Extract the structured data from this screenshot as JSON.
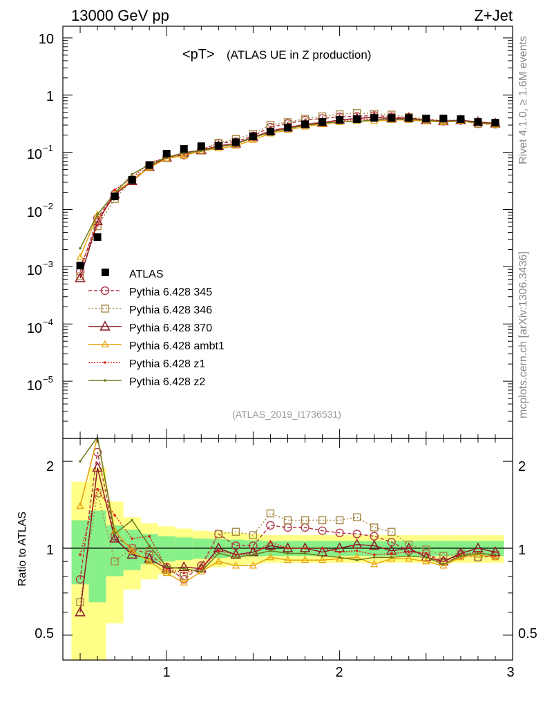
{
  "header": {
    "left": "13000 GeV pp",
    "right": "Z+Jet"
  },
  "side": {
    "version": "Rivet 4.1.0, ≥ 1.6M events",
    "source": "mcplots.cern.ch [arXiv:1306.3436]"
  },
  "plot": {
    "title_main": "<pT>",
    "title_sub": "(ATLAS UE in Z production)",
    "analysis_id": "(ATLAS_2019_I1736531)",
    "ratio_label": "Ratio to ATLAS",
    "y_ticks": [
      {
        "label": "10",
        "exp": ""
      },
      {
        "label": "1",
        "exp": ""
      },
      {
        "label": "10",
        "exp": "−1"
      },
      {
        "label": "10",
        "exp": "−2"
      },
      {
        "label": "10",
        "exp": "−3"
      },
      {
        "label": "10",
        "exp": "−4"
      },
      {
        "label": "10",
        "exp": "−5"
      }
    ],
    "x_ticks": [
      "1",
      "2",
      "3"
    ],
    "ratio_ticks": [
      "2",
      "1",
      "0.5"
    ]
  },
  "chart_data": {
    "type": "line",
    "title": "<pT> (ATLAS UE in Z production)",
    "xlabel": "",
    "ylabel": "",
    "xlim": [
      0.4,
      3.0
    ],
    "ylim": [
      1e-06,
      16
    ],
    "yscale": "log",
    "ratio_ylim": [
      0.41,
      2.4
    ],
    "x": [
      0.5,
      0.6,
      0.7,
      0.8,
      0.9,
      1.0,
      1.1,
      1.2,
      1.3,
      1.4,
      1.5,
      1.6,
      1.7,
      1.8,
      1.9,
      2.0,
      2.1,
      2.2,
      2.3,
      2.4,
      2.5,
      2.6,
      2.7,
      2.8,
      2.9
    ],
    "data": {
      "name": "ATLAS",
      "values": [
        0.00105,
        0.0033,
        0.017,
        0.033,
        0.06,
        0.095,
        0.115,
        0.128,
        0.13,
        0.15,
        0.19,
        0.23,
        0.27,
        0.31,
        0.34,
        0.37,
        0.38,
        0.4,
        0.4,
        0.4,
        0.39,
        0.39,
        0.38,
        0.34,
        0.33
      ],
      "band_inner": [
        0.25,
        0.35,
        0.2,
        0.16,
        0.12,
        0.1,
        0.09,
        0.08,
        0.075,
        0.07,
        0.065,
        0.06,
        0.06,
        0.06,
        0.06,
        0.06,
        0.06,
        0.06,
        0.06,
        0.06,
        0.06,
        0.06,
        0.06,
        0.06,
        0.06
      ],
      "band_outer": [
        0.7,
        0.9,
        0.45,
        0.28,
        0.22,
        0.19,
        0.17,
        0.15,
        0.14,
        0.13,
        0.12,
        0.11,
        0.11,
        0.11,
        0.11,
        0.11,
        0.11,
        0.11,
        0.11,
        0.11,
        0.11,
        0.11,
        0.11,
        0.11,
        0.11
      ]
    },
    "series": [
      {
        "name": "Pythia 6.428 345",
        "color": "#b03a48",
        "marker": "circle",
        "dash": "5,3",
        "ratio": [
          0.78,
          2.15,
          1.1,
          1.0,
          0.95,
          0.86,
          0.78,
          0.87,
          1.12,
          1.02,
          1.02,
          1.2,
          1.18,
          1.18,
          1.15,
          1.13,
          1.12,
          1.1,
          1.05,
          0.98,
          0.96,
          0.9,
          0.95,
          0.93,
          0.94
        ]
      },
      {
        "name": "Pythia 6.428 346",
        "color": "#a88a48",
        "marker": "square",
        "dash": "2,3",
        "ratio": [
          0.65,
          1.55,
          0.9,
          1.0,
          0.98,
          0.84,
          0.8,
          0.85,
          1.12,
          1.14,
          1.11,
          1.32,
          1.25,
          1.25,
          1.25,
          1.25,
          1.28,
          1.18,
          1.14,
          1.03,
          0.99,
          0.94,
          0.96,
          0.93,
          0.95
        ]
      },
      {
        "name": "Pythia 6.428 370",
        "color": "#8b1a2a",
        "marker": "triangle",
        "dash": "",
        "ratio": [
          0.6,
          1.9,
          1.08,
          0.95,
          0.92,
          0.85,
          0.86,
          0.85,
          1.0,
          0.95,
          0.97,
          1.02,
          1.0,
          1.0,
          0.97,
          1.0,
          1.03,
          1.02,
          0.98,
          1.0,
          0.93,
          0.9,
          0.96,
          1.0,
          0.97
        ]
      },
      {
        "name": "Pythia 6.428 ambt1",
        "color": "#e8a20c",
        "marker": "triangle-small",
        "dash": "",
        "ratio": [
          1.4,
          2.45,
          1.15,
          0.98,
          0.9,
          0.82,
          0.76,
          0.83,
          0.9,
          0.87,
          0.87,
          0.93,
          0.91,
          0.91,
          0.91,
          0.92,
          0.93,
          0.88,
          0.92,
          0.92,
          0.9,
          0.87,
          0.93,
          0.95,
          0.93
        ]
      },
      {
        "name": "Pythia 6.428 z1",
        "color": "#d82020",
        "marker": "dot",
        "dash": "2,2",
        "ratio": [
          0.95,
          1.6,
          1.3,
          1.08,
          1.1,
          0.85,
          0.82,
          0.85,
          0.98,
          0.95,
          0.95,
          1.05,
          1.0,
          1.0,
          1.0,
          0.97,
          0.98,
          0.95,
          0.96,
          0.97,
          0.96,
          0.88,
          0.95,
          0.97,
          0.94
        ]
      },
      {
        "name": "Pythia 6.428 z2",
        "color": "#6b7a1e",
        "marker": "dot",
        "dash": "",
        "ratio": [
          2.0,
          2.5,
          1.12,
          1.25,
          1.02,
          0.86,
          0.85,
          0.83,
          0.96,
          0.93,
          0.95,
          0.98,
          0.96,
          0.96,
          0.94,
          0.93,
          0.91,
          0.93,
          0.93,
          0.94,
          0.93,
          0.88,
          0.94,
          0.96,
          0.95
        ]
      }
    ]
  }
}
